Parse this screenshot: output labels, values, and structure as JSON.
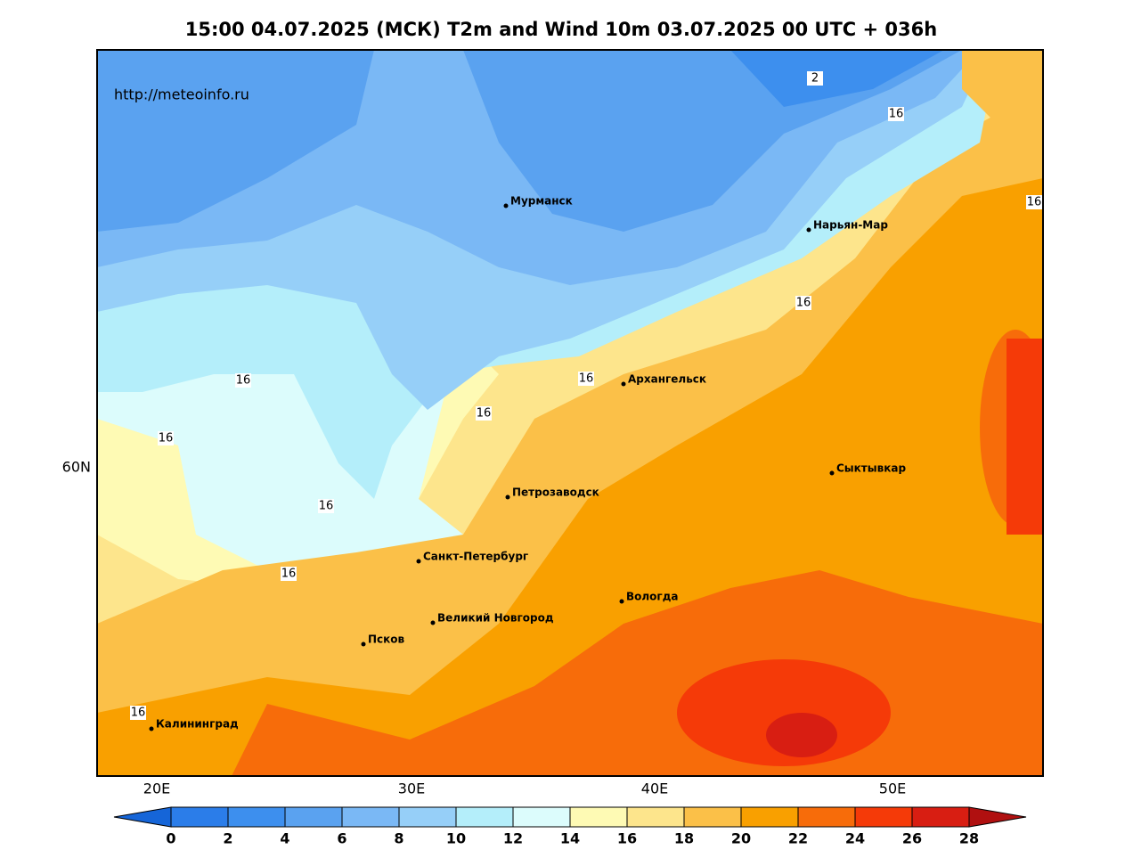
{
  "title": "15:00 04.07.2025 (МСК) T2m and Wind 10m 03.07.2025 00 UTC + 036h",
  "watermark": "http://meteoinfo.ru",
  "axes": {
    "x_labels": [
      "20E",
      "30E",
      "40E",
      "50E"
    ],
    "y_labels": [
      "60N"
    ]
  },
  "cities": [
    "Мурманск",
    "Нарьян-Мар",
    "Архангельск",
    "Петрозаводск",
    "Сыктывкар",
    "Санкт-Петербург",
    "Вологда",
    "Великий Новгород",
    "Псков",
    "Калининград"
  ],
  "contour_labels": [
    "2",
    "16",
    "16",
    "16",
    "16",
    "16",
    "16",
    "16",
    "16",
    "16",
    "16"
  ],
  "colorbar": {
    "ticks": [
      0,
      2,
      4,
      6,
      8,
      10,
      12,
      14,
      16,
      18,
      20,
      22,
      24,
      26,
      28
    ],
    "colors": [
      "#1565d8",
      "#2b7de9",
      "#3d8fee",
      "#5aa2f0",
      "#7ab8f5",
      "#96cff8",
      "#b4eefa",
      "#dcfcfc",
      "#fefab4",
      "#fde58c",
      "#fbc048",
      "#f9a000",
      "#f76c0a",
      "#f53a08",
      "#d81e12",
      "#b01010"
    ]
  }
}
